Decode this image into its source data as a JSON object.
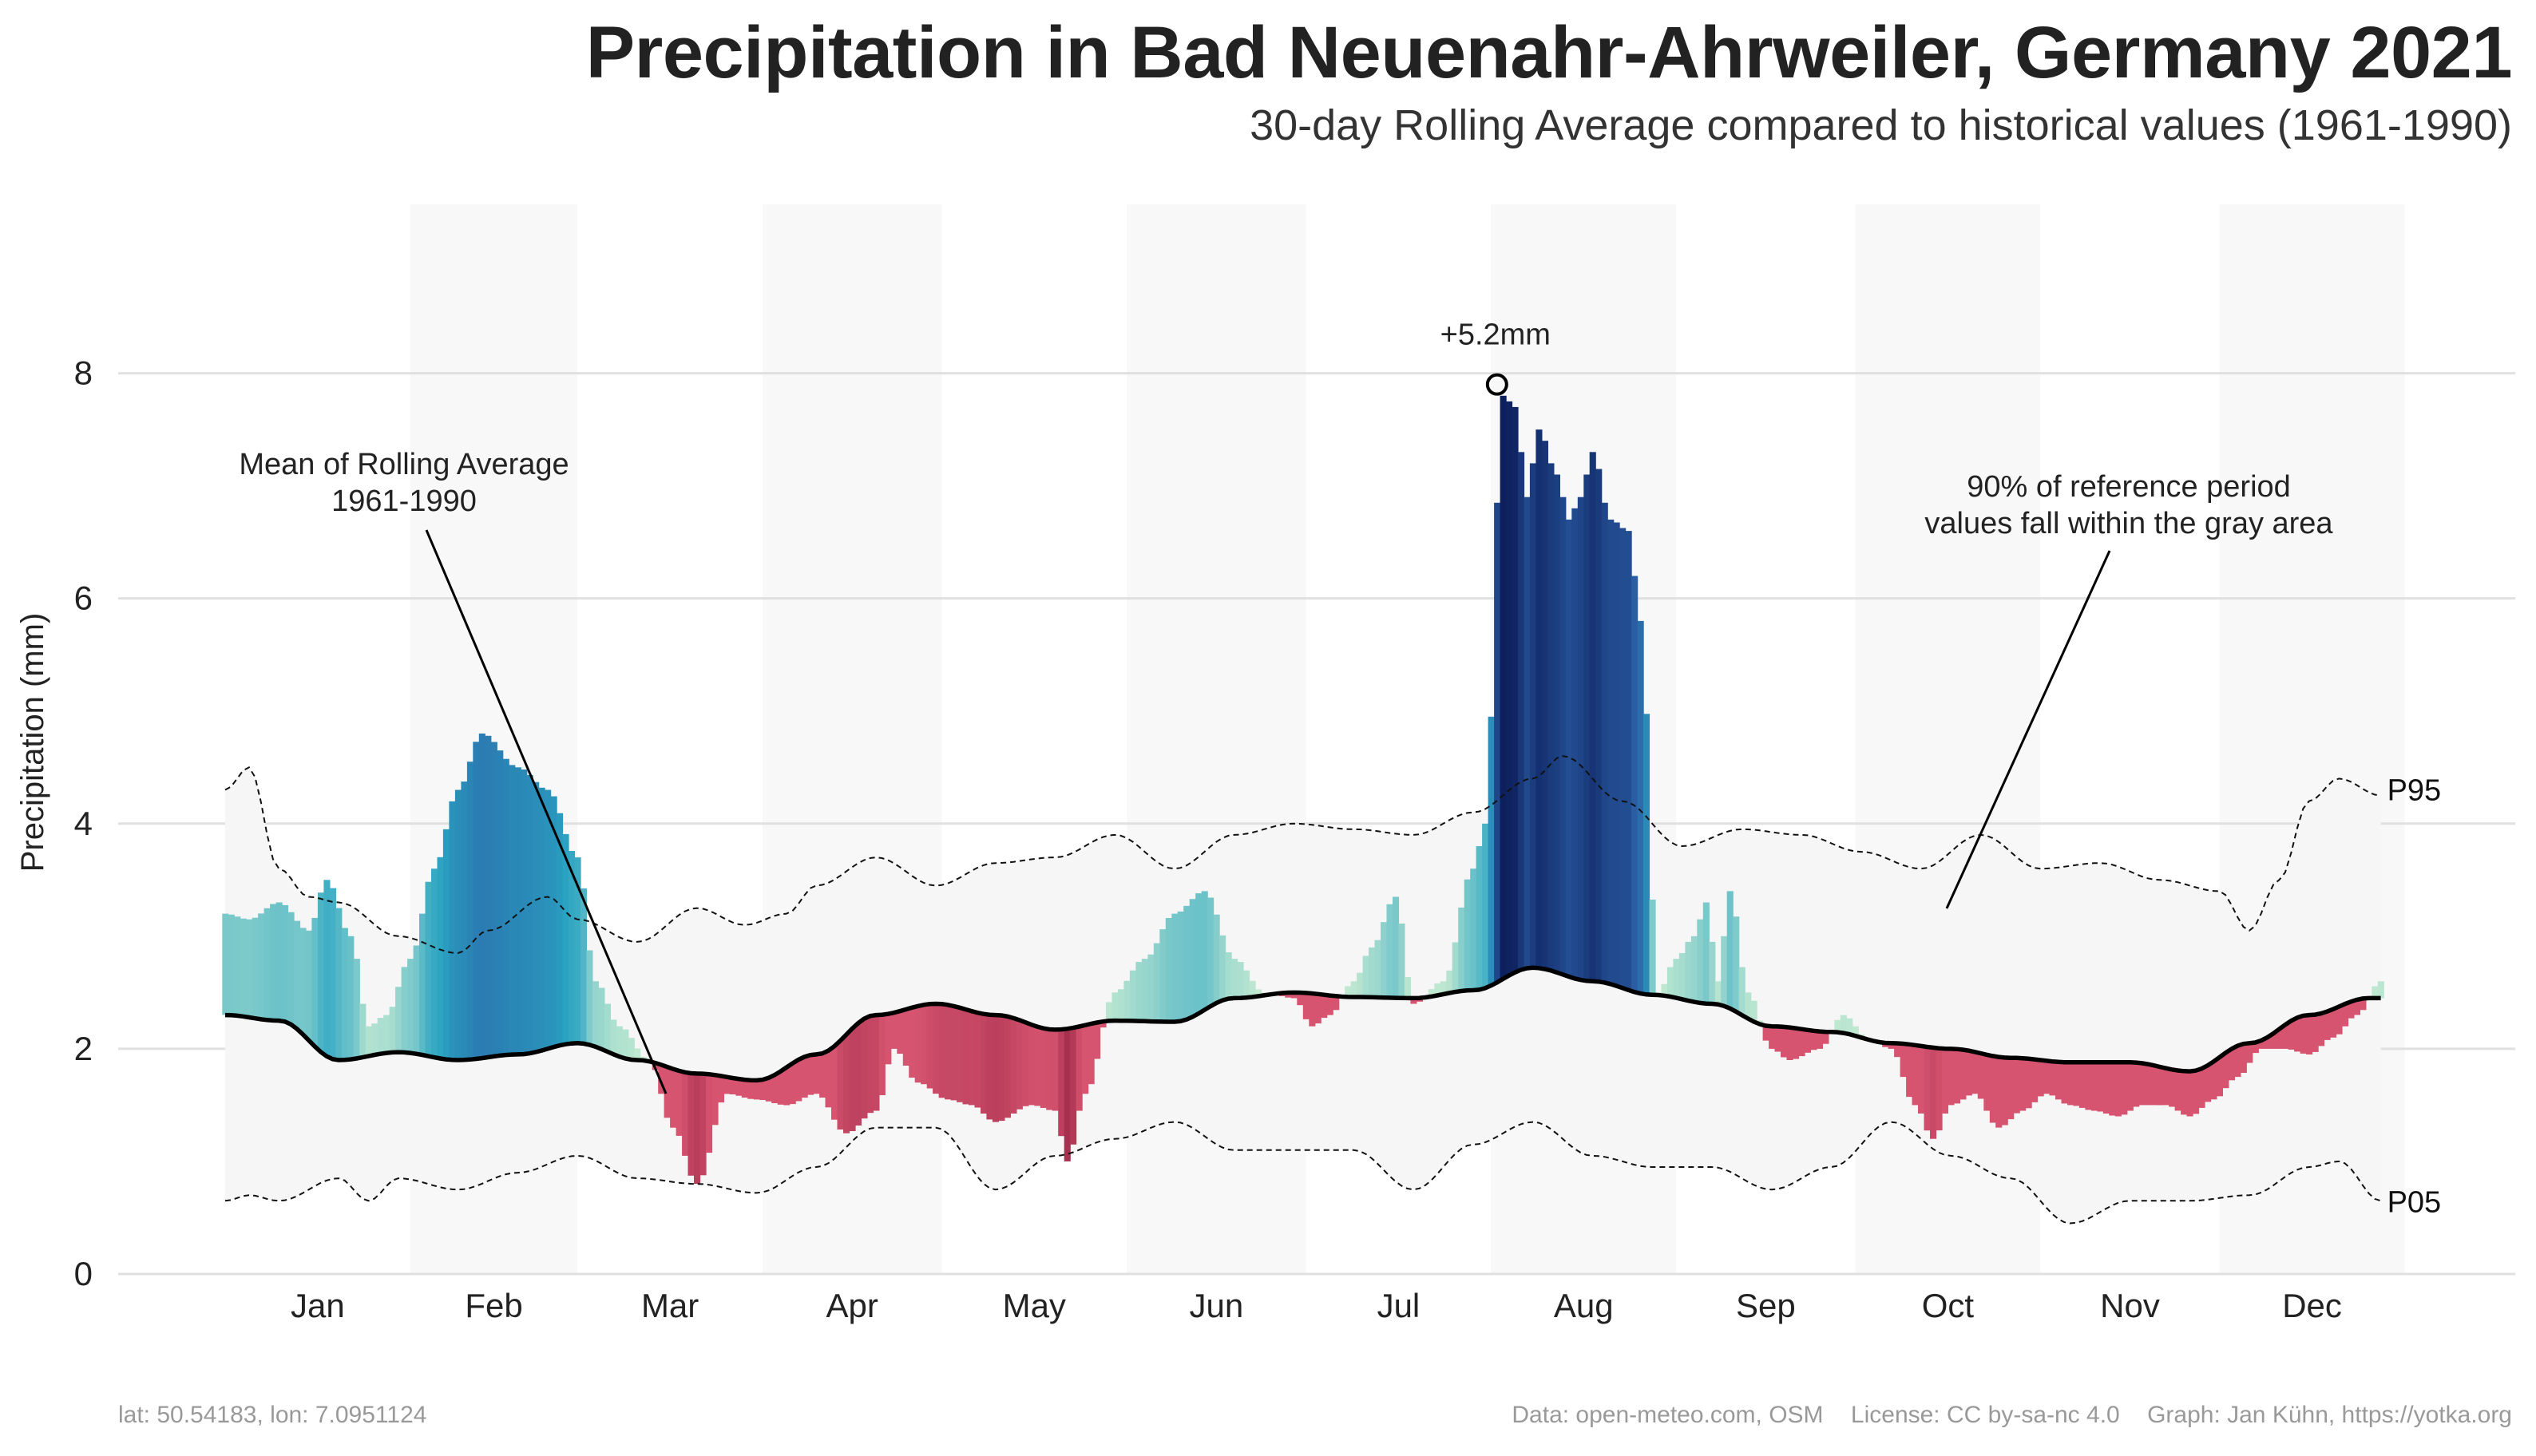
{
  "chart_data": {
    "type": "area",
    "title": "Precipitation in Bad Neuenahr-Ahrweiler, Germany 2021",
    "subtitle": "30-day Rolling Average compared to historical values (1961-1990)",
    "ylabel": "Precipitation (mm)",
    "xlabel": "",
    "ylim": [
      0,
      9.5
    ],
    "yticks": [
      "0",
      "2",
      "4",
      "6",
      "8"
    ],
    "ytick_values": [
      0,
      2,
      4,
      6,
      8
    ],
    "grid": "horizontal",
    "months": [
      "Jan",
      "Feb",
      "Mar",
      "Apr",
      "May",
      "Jun",
      "Jul",
      "Aug",
      "Sep",
      "Oct",
      "Nov",
      "Dec"
    ],
    "series": [
      {
        "name": "Mean of Rolling Average 1961-1990",
        "x": [
          1,
          10,
          20,
          30,
          40,
          50,
          60,
          70,
          80,
          90,
          100,
          110,
          120,
          130,
          140,
          150,
          160,
          170,
          180,
          190,
          200,
          210,
          220,
          230,
          240,
          250,
          260,
          270,
          280,
          290,
          300,
          310,
          320,
          330,
          340,
          350,
          360
        ],
        "values": [
          2.3,
          2.25,
          1.9,
          1.97,
          1.9,
          1.95,
          2.05,
          1.9,
          1.78,
          1.72,
          1.95,
          2.3,
          2.4,
          2.3,
          2.17,
          2.25,
          2.24,
          2.45,
          2.5,
          2.46,
          2.45,
          2.52,
          2.72,
          2.6,
          2.48,
          2.4,
          2.2,
          2.15,
          2.05,
          2.0,
          1.92,
          1.88,
          1.88,
          1.8,
          2.05,
          2.3,
          2.45
        ]
      },
      {
        "name": "P95",
        "x": [
          1,
          5,
          10,
          15,
          20,
          30,
          40,
          45,
          55,
          60,
          70,
          80,
          88,
          95,
          100,
          110,
          120,
          130,
          140,
          150,
          160,
          170,
          180,
          190,
          200,
          210,
          220,
          225,
          235,
          245,
          255,
          265,
          275,
          285,
          295,
          305,
          315,
          325,
          335,
          340,
          345,
          350,
          355,
          362
        ],
        "values": [
          4.3,
          4.5,
          3.6,
          3.35,
          3.3,
          3.0,
          2.85,
          3.05,
          3.35,
          3.15,
          2.95,
          3.25,
          3.1,
          3.2,
          3.45,
          3.7,
          3.45,
          3.65,
          3.7,
          3.9,
          3.6,
          3.9,
          4.0,
          3.95,
          3.9,
          4.1,
          4.4,
          4.6,
          4.2,
          3.8,
          3.95,
          3.9,
          3.75,
          3.6,
          3.9,
          3.6,
          3.65,
          3.5,
          3.4,
          3.05,
          3.5,
          4.2,
          4.4,
          4.25
        ]
      },
      {
        "name": "P05",
        "x": [
          1,
          5,
          10,
          20,
          25,
          30,
          40,
          50,
          60,
          70,
          80,
          90,
          100,
          110,
          120,
          130,
          140,
          150,
          160,
          170,
          180,
          190,
          200,
          210,
          220,
          230,
          240,
          250,
          260,
          270,
          280,
          290,
          300,
          310,
          320,
          330,
          340,
          350,
          355,
          362
        ],
        "values": [
          0.65,
          0.7,
          0.65,
          0.85,
          0.65,
          0.85,
          0.75,
          0.9,
          1.05,
          0.85,
          0.8,
          0.72,
          0.95,
          1.3,
          1.3,
          0.75,
          1.05,
          1.2,
          1.35,
          1.1,
          1.1,
          1.1,
          0.75,
          1.15,
          1.35,
          1.05,
          0.95,
          0.95,
          0.75,
          0.95,
          1.35,
          1.05,
          0.85,
          0.45,
          0.65,
          0.65,
          0.7,
          0.95,
          1.0,
          0.65
        ]
      },
      {
        "name": "2021",
        "x": [
          1,
          5,
          10,
          15,
          18,
          22,
          25,
          28,
          32,
          36,
          40,
          44,
          50,
          55,
          60,
          63,
          67,
          72,
          76,
          80,
          85,
          90,
          95,
          100,
          105,
          110,
          113,
          117,
          122,
          126,
          130,
          136,
          140,
          142,
          145,
          150,
          155,
          160,
          165,
          170,
          175,
          180,
          183,
          186,
          190,
          193,
          197,
          200,
          205,
          210,
          212,
          215,
          217,
          219,
          221,
          224,
          226,
          228,
          230,
          233,
          236,
          238,
          241,
          244,
          247,
          249,
          251,
          253,
          256,
          260,
          263,
          268,
          272,
          276,
          280,
          284,
          287,
          290,
          294,
          298,
          302,
          306,
          310,
          314,
          318,
          322,
          326,
          330,
          334,
          338,
          342,
          346,
          350,
          354,
          358,
          362
        ],
        "values": [
          3.2,
          3.15,
          3.3,
          3.05,
          3.5,
          3.0,
          2.2,
          2.3,
          2.8,
          3.6,
          4.3,
          4.8,
          4.5,
          4.3,
          3.7,
          2.6,
          2.2,
          1.9,
          1.3,
          0.8,
          1.6,
          1.55,
          1.5,
          1.6,
          1.25,
          1.45,
          2.0,
          1.7,
          1.55,
          1.5,
          1.35,
          1.5,
          1.45,
          1.0,
          1.6,
          2.5,
          2.8,
          3.2,
          3.4,
          2.8,
          2.5,
          2.45,
          2.2,
          2.3,
          2.6,
          2.9,
          3.35,
          2.4,
          2.6,
          3.6,
          4.0,
          7.8,
          7.7,
          6.9,
          7.5,
          7.1,
          6.7,
          6.9,
          7.3,
          6.7,
          6.6,
          5.8,
          2.5,
          2.8,
          3.0,
          3.3,
          2.6,
          3.4,
          2.5,
          2.0,
          1.9,
          2.0,
          2.3,
          2.1,
          2.0,
          1.5,
          1.2,
          1.5,
          1.6,
          1.3,
          1.45,
          1.6,
          1.5,
          1.45,
          1.4,
          1.5,
          1.5,
          1.4,
          1.55,
          1.75,
          2.0,
          2.0,
          1.95,
          2.1,
          2.3,
          2.6
        ]
      }
    ],
    "annotations": {
      "peak_label": "+5.2mm",
      "peak_x": 214,
      "peak_y": 7.9,
      "mean_note_line1": "Mean of Rolling Average",
      "mean_note_line2": "1961-1990",
      "range_note_line1": "90% of reference period",
      "range_note_line2": "values fall within the gray area",
      "p95_label": "P95",
      "p05_label": "P05"
    },
    "colors": {
      "above": "#2b5fa6",
      "above_light": "#c8ecd2",
      "above_mid": "#2aa4c2",
      "above_dark": "#0d1f5c",
      "below": "#d65470",
      "below_dark": "#7a0f2e",
      "reference_band": "#f6f6f6",
      "month_shade": "#f2f2f2",
      "grid": "#e0e0e0",
      "mean_line": "#000000"
    }
  },
  "footer": {
    "location": "lat: 50.54183, lon: 7.0951124",
    "data": "Data: open-meteo.com, OSM",
    "license": "License: CC by-sa-nc 4.0",
    "graph": "Graph: Jan Kühn, https://yotka.org"
  }
}
